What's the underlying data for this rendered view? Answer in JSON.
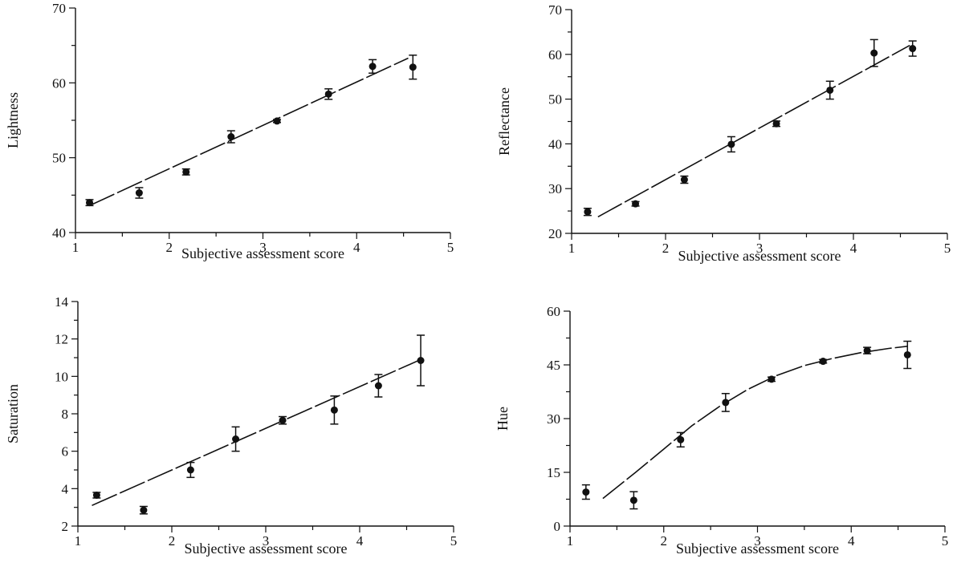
{
  "chart_data": [
    {
      "type": "scatter",
      "xlabel": "Subjective assessment score",
      "ylabel": "Lightness",
      "xlim": [
        1,
        5
      ],
      "ylim": [
        40,
        70
      ],
      "xticks": [
        1,
        2,
        3,
        4,
        5
      ],
      "yticks": [
        40,
        50,
        60,
        70
      ],
      "grid": false,
      "points": [
        {
          "x": 1.15,
          "y": 44.0,
          "err": 0.4
        },
        {
          "x": 1.68,
          "y": 45.3,
          "err": 0.7
        },
        {
          "x": 2.18,
          "y": 48.1,
          "err": 0.4
        },
        {
          "x": 2.66,
          "y": 52.8,
          "err": 0.8
        },
        {
          "x": 3.15,
          "y": 54.9,
          "err": 0.2
        },
        {
          "x": 3.7,
          "y": 58.5,
          "err": 0.7
        },
        {
          "x": 4.17,
          "y": 62.2,
          "err": 0.9
        },
        {
          "x": 4.6,
          "y": 62.1,
          "err": 1.6
        }
      ],
      "fit_line": {
        "x": [
          1.15,
          4.55
        ],
        "y": [
          43.6,
          63.3
        ]
      }
    },
    {
      "type": "scatter",
      "xlabel": "Subjective assessment score",
      "ylabel": "Reflectance",
      "xlim": [
        1,
        5
      ],
      "ylim": [
        20,
        70
      ],
      "xticks": [
        1,
        2,
        3,
        4,
        5
      ],
      "yticks": [
        20,
        30,
        40,
        50,
        60,
        70
      ],
      "grid": false,
      "points": [
        {
          "x": 1.17,
          "y": 24.8,
          "err": 0.8
        },
        {
          "x": 1.68,
          "y": 26.6,
          "err": 0.5
        },
        {
          "x": 2.2,
          "y": 32.0,
          "err": 0.8
        },
        {
          "x": 2.7,
          "y": 39.9,
          "err": 1.7
        },
        {
          "x": 3.18,
          "y": 44.5,
          "err": 0.6
        },
        {
          "x": 3.75,
          "y": 52.0,
          "err": 2.0
        },
        {
          "x": 4.22,
          "y": 60.3,
          "err": 3.0
        },
        {
          "x": 4.63,
          "y": 61.3,
          "err": 1.7
        }
      ],
      "fit_line": {
        "x": [
          1.28,
          4.6
        ],
        "y": [
          23.7,
          62.0
        ]
      }
    },
    {
      "type": "scatter",
      "xlabel": "Subjective assessment score",
      "ylabel": "Saturation",
      "xlim": [
        1,
        5
      ],
      "ylim": [
        2,
        14
      ],
      "xticks": [
        1,
        2,
        3,
        4,
        5
      ],
      "yticks": [
        2,
        4,
        6,
        8,
        10,
        12,
        14
      ],
      "grid": false,
      "points": [
        {
          "x": 1.2,
          "y": 3.65,
          "err": 0.15
        },
        {
          "x": 1.7,
          "y": 2.85,
          "err": 0.2
        },
        {
          "x": 2.2,
          "y": 5.0,
          "err": 0.4
        },
        {
          "x": 2.68,
          "y": 6.65,
          "err": 0.65
        },
        {
          "x": 3.18,
          "y": 7.65,
          "err": 0.2
        },
        {
          "x": 3.73,
          "y": 8.2,
          "err": 0.75
        },
        {
          "x": 4.2,
          "y": 9.5,
          "err": 0.6
        },
        {
          "x": 4.65,
          "y": 10.85,
          "err": 1.35
        }
      ],
      "fit_line": {
        "x": [
          1.15,
          4.65
        ],
        "y": [
          3.1,
          10.9
        ]
      }
    },
    {
      "type": "scatter",
      "xlabel": "Subjective assessment score",
      "ylabel": "Hue",
      "xlim": [
        1,
        5
      ],
      "ylim": [
        0,
        60
      ],
      "xticks": [
        1,
        2,
        3,
        4,
        5
      ],
      "yticks": [
        0,
        15,
        30,
        45,
        60
      ],
      "grid": false,
      "points": [
        {
          "x": 1.17,
          "y": 9.5,
          "err": 2.0
        },
        {
          "x": 1.68,
          "y": 7.2,
          "err": 2.4
        },
        {
          "x": 2.18,
          "y": 24.1,
          "err": 2.0
        },
        {
          "x": 2.66,
          "y": 34.5,
          "err": 2.5
        },
        {
          "x": 3.15,
          "y": 41.0,
          "err": 0.6
        },
        {
          "x": 3.7,
          "y": 46.0,
          "err": 0.5
        },
        {
          "x": 4.17,
          "y": 49.0,
          "err": 0.9
        },
        {
          "x": 4.6,
          "y": 47.8,
          "err": 3.8
        }
      ],
      "fit_line": {
        "x": [
          1.35,
          1.7,
          2.0,
          2.3,
          2.6,
          2.9,
          3.2,
          3.5,
          3.8,
          4.1,
          4.4,
          4.6
        ],
        "y": [
          7.7,
          15.0,
          21.5,
          28.0,
          33.5,
          38.2,
          42.0,
          44.8,
          46.8,
          48.4,
          49.6,
          50.2
        ]
      }
    }
  ]
}
